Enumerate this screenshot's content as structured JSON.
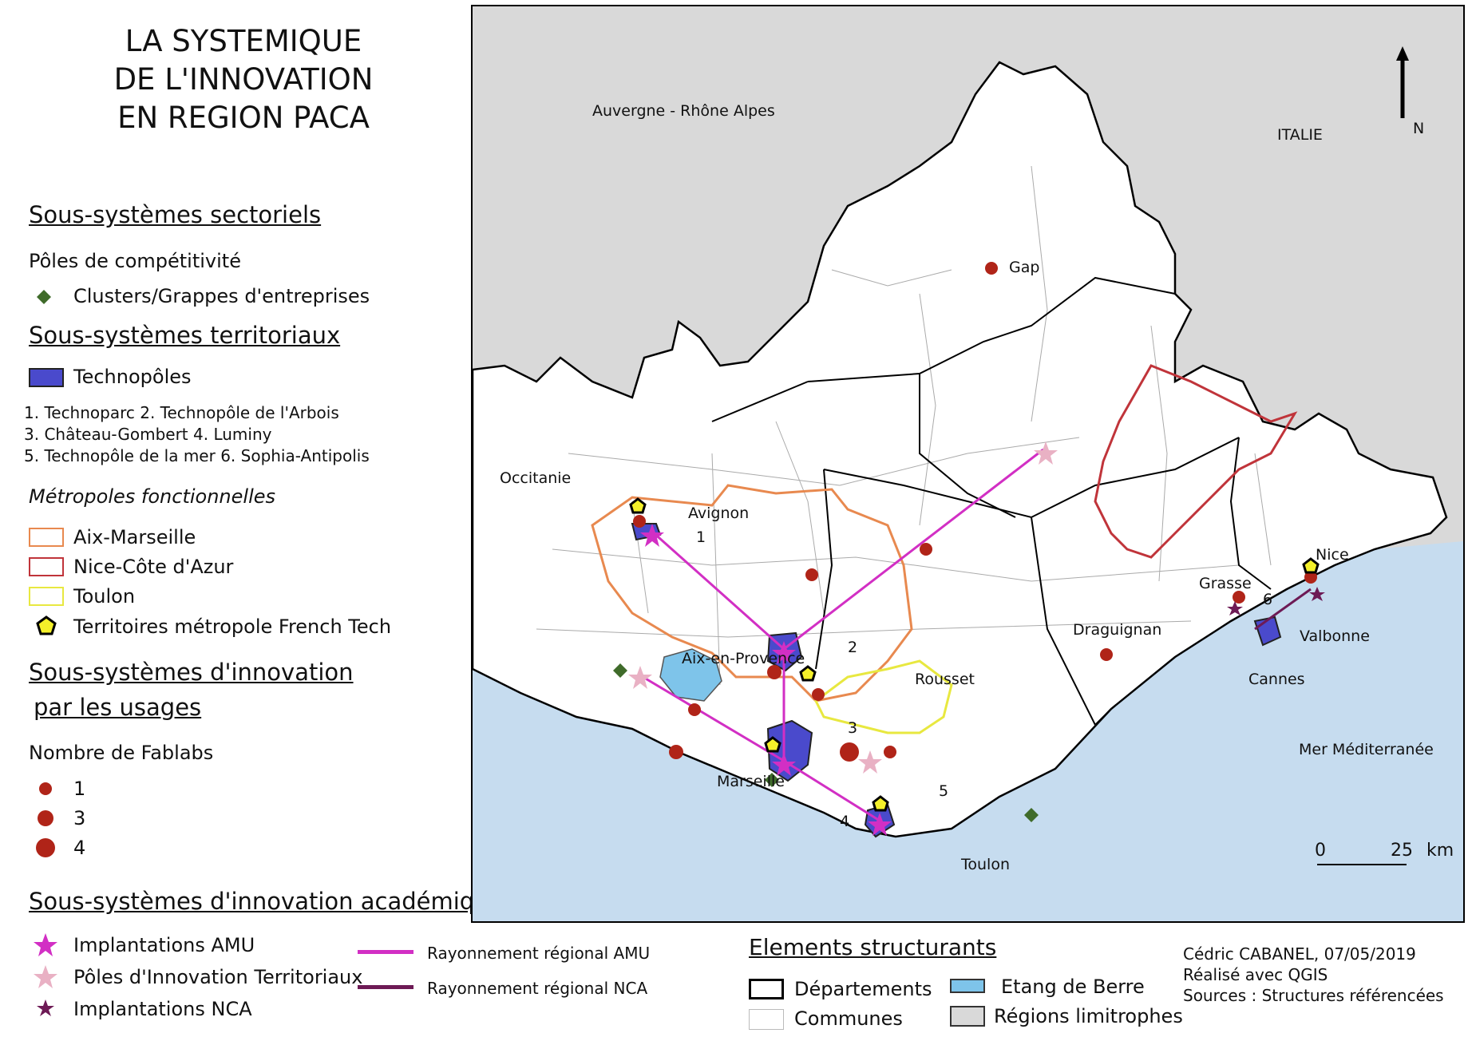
{
  "title": [
    "LA SYSTEMIQUE",
    "DE L'INNOVATION",
    "EN REGION PACA"
  ],
  "legend": {
    "sectoriels_heading": "Sous-systèmes sectoriels",
    "poles_label": "Pôles de compétitivité",
    "clusters_label": "Clusters/Grappes d'entreprises",
    "territoriaux_heading": "Sous-systèmes territoriaux",
    "technopoles_label": "Technopôles",
    "technopoles_list": [
      "1. Technoparc  2. Technopôle de l'Arbois",
      "3. Château-Gombert  4. Luminy",
      "5. Technopôle de la mer  6. Sophia-Antipolis"
    ],
    "metropoles_heading": "Métropoles fonctionnelles",
    "metropoles": [
      {
        "label": "Aix-Marseille",
        "color": "#e8894f"
      },
      {
        "label": "Nice-Côte d'Azur",
        "color": "#c0343a"
      },
      {
        "label": "Toulon",
        "color": "#e8e840"
      }
    ],
    "french_tech_label": "Territoires métropole French Tech",
    "usages_heading_1": "Sous-systèmes d'innovation",
    "usages_heading_2": "par les usages",
    "fablabs_label": "Nombre de Fablabs",
    "fablabs": [
      "1",
      "3",
      "4"
    ],
    "academique_heading": "Sous-systèmes d'innovation académique",
    "amu_label": "Implantations AMU",
    "pit_label": "Pôles d'Innovation Territoriaux",
    "nca_label": "Implantations NCA",
    "rayonnement_amu": "Rayonnement régional AMU",
    "rayonnement_nca": "Rayonnement régional NCA",
    "elements_heading": "Elements structurants",
    "departements": "Départements",
    "communes": "Communes",
    "etang": "Etang de Berre",
    "regions": "Régions limitrophes"
  },
  "credits": [
    "Cédric CABANEL, 07/05/2019",
    "Réalisé avec QGIS",
    "Sources : Structures référencées"
  ],
  "map": {
    "labels": {
      "auvergne": "Auvergne - Rhône Alpes",
      "italie": "ITALIE",
      "occitanie": "Occitanie",
      "mer": "Mer Méditerranée",
      "gap": "Gap",
      "avignon": "Avignon",
      "aix": "Aix-en-Provence",
      "rousset": "Rousset",
      "draguignan": "Draguignan",
      "grasse": "Grasse",
      "nice": "Nice",
      "valbonne": "Valbonne",
      "cannes": "Cannes",
      "marseille": "Marseille",
      "toulon": "Toulon",
      "n1": "1",
      "n2": "2",
      "n3": "3",
      "n4": "4",
      "n5": "5",
      "n6": "6"
    },
    "north": "N",
    "scale": {
      "zero": "0",
      "end": "25",
      "unit": "km"
    }
  },
  "colors": {
    "sea": "#c6dcef",
    "neighbor": "#d9d9d9",
    "technopole": "#4a4acc",
    "cluster": "#3f6b2a",
    "fablab": "#b02418",
    "amu": "#d22fc4",
    "pit": "#e9b1c4",
    "nca": "#6d1a55",
    "french_tech": "#f4f02a",
    "etang": "#7ec4ea"
  }
}
